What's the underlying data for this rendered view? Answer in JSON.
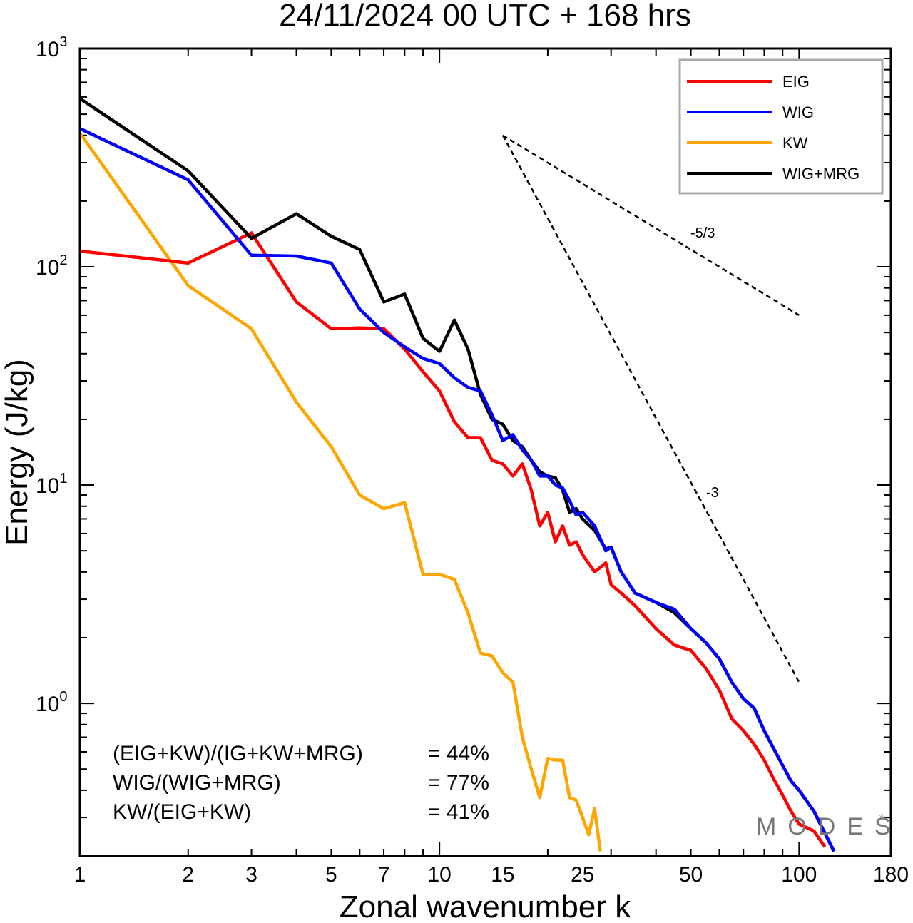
{
  "chart_data": {
    "type": "line",
    "title": "24/11/2024  00 UTC  + 168 hrs",
    "xlabel": "Zonal wavenumber k",
    "ylabel": "Energy (J/kg)",
    "xscale": "log",
    "yscale": "log",
    "xlim": [
      1,
      180
    ],
    "ylim": [
      0.2,
      1000
    ],
    "x_ticks": [
      1,
      2,
      3,
      5,
      7,
      10,
      15,
      25,
      50,
      100,
      180
    ],
    "x_tick_labels": [
      "1",
      "2",
      "3",
      "5",
      "7",
      "10",
      "15",
      "25",
      "50",
      "100",
      "180"
    ],
    "y_ticks": [
      1,
      10,
      100,
      1000
    ],
    "y_tick_labels": [
      {
        "base": "10",
        "exp": "0"
      },
      {
        "base": "10",
        "exp": "1"
      },
      {
        "base": "10",
        "exp": "2"
      },
      {
        "base": "10",
        "exp": "3"
      }
    ],
    "legend": {
      "position": "top-right",
      "entries": [
        {
          "label": "EIG",
          "color": "#ff0000"
        },
        {
          "label": "WIG",
          "color": "#0000ff"
        },
        {
          "label": "KW",
          "color": "#ffa500"
        },
        {
          "label": "WIG+MRG",
          "color": "#000000"
        }
      ]
    },
    "series": [
      {
        "name": "EIG",
        "color": "#ff0000",
        "x": [
          1,
          2,
          3,
          4,
          5,
          6,
          7,
          8,
          9,
          10,
          11,
          12,
          13,
          14,
          15,
          16,
          17,
          18,
          19,
          20,
          21,
          22,
          23,
          24,
          25,
          27,
          29,
          30,
          32,
          35,
          40,
          45,
          50,
          55,
          60,
          65,
          70,
          75,
          80,
          85,
          90,
          95,
          100,
          110,
          118
        ],
        "y": [
          118,
          104,
          143,
          69,
          52,
          52.5,
          52,
          42,
          33,
          27,
          19.5,
          16.5,
          16.5,
          13,
          12.5,
          11,
          12.5,
          9.5,
          6.5,
          7.5,
          5.5,
          6.5,
          5.3,
          5.5,
          4.8,
          4,
          4.4,
          3.5,
          3.2,
          2.8,
          2.2,
          1.85,
          1.75,
          1.45,
          1.15,
          0.85,
          0.75,
          0.65,
          0.55,
          0.45,
          0.38,
          0.32,
          0.28,
          0.26,
          0.22
        ]
      },
      {
        "name": "WIG",
        "color": "#0000ff",
        "x": [
          1,
          2,
          3,
          4,
          5,
          6,
          7,
          8,
          9,
          10,
          11,
          12,
          13,
          14,
          15,
          16,
          17,
          18,
          19,
          20,
          21,
          22,
          23,
          24,
          25,
          27,
          29,
          30,
          32,
          35,
          40,
          45,
          50,
          55,
          60,
          65,
          70,
          75,
          80,
          85,
          90,
          95,
          100,
          110,
          125
        ],
        "y": [
          430,
          250,
          113,
          112,
          104,
          64,
          50,
          43,
          38,
          36,
          31,
          28,
          27,
          21,
          16,
          17,
          14.5,
          13,
          11,
          11,
          10,
          9.7,
          8.5,
          7.3,
          7.5,
          6.5,
          5,
          5.2,
          4,
          3.2,
          2.9,
          2.7,
          2.2,
          1.9,
          1.6,
          1.25,
          1.05,
          0.95,
          0.75,
          0.62,
          0.52,
          0.44,
          0.4,
          0.32,
          0.21
        ]
      },
      {
        "name": "KW",
        "color": "#ffa500",
        "x": [
          1,
          2,
          3,
          4,
          5,
          6,
          7,
          8,
          9,
          10,
          11,
          12,
          13,
          14,
          15,
          16,
          17,
          18,
          19,
          20,
          21,
          22,
          23,
          24,
          25,
          26,
          27,
          28
        ],
        "y": [
          410,
          82,
          52,
          24,
          15,
          9,
          7.8,
          8.3,
          3.9,
          3.9,
          3.7,
          2.6,
          1.7,
          1.65,
          1.38,
          1.25,
          0.7,
          0.5,
          0.37,
          0.56,
          0.55,
          0.55,
          0.37,
          0.36,
          0.3,
          0.25,
          0.33,
          0.21
        ]
      },
      {
        "name": "WIG+MRG",
        "color": "#000000",
        "x": [
          1,
          2,
          3,
          4,
          5,
          6,
          7,
          8,
          9,
          10,
          11,
          12,
          13,
          14,
          15,
          16,
          17,
          18,
          19,
          20,
          21,
          22,
          23,
          24,
          25,
          27,
          29,
          30,
          32,
          35,
          40,
          45,
          50,
          55,
          60,
          65,
          70,
          75,
          80,
          85,
          90,
          95,
          100,
          110,
          125
        ],
        "y": [
          590,
          275,
          135,
          175,
          138,
          120,
          69,
          75,
          47,
          41,
          57,
          42,
          26,
          20,
          19,
          16,
          15,
          13,
          11.5,
          11,
          10.8,
          9.5,
          7.5,
          7.8,
          7,
          6.2,
          5.1,
          5.2,
          4,
          3.2,
          2.9,
          2.6,
          2.2,
          1.9,
          1.6,
          1.25,
          1.05,
          0.95,
          0.75,
          0.62,
          0.52,
          0.44,
          0.4,
          0.32,
          0.21
        ]
      }
    ],
    "reference_slopes": [
      {
        "label": "-5/3",
        "from": {
          "x": 15,
          "y": 400
        },
        "to": {
          "x": 100,
          "y": 60
        }
      },
      {
        "label": "-3",
        "from": {
          "x": 15,
          "y": 400
        },
        "to": {
          "x": 100,
          "y": 1.25
        }
      }
    ],
    "ratios": [
      {
        "label": "(EIG+KW)/(IG+KW+MRG)",
        "value": "= 44%"
      },
      {
        "label": "WIG/(WIG+MRG)",
        "value": "= 77%"
      },
      {
        "label": "KW/(EIG+KW)",
        "value": "= 41%"
      }
    ],
    "watermark": "MODES",
    "watermark_mark": "©",
    "grid": false
  }
}
